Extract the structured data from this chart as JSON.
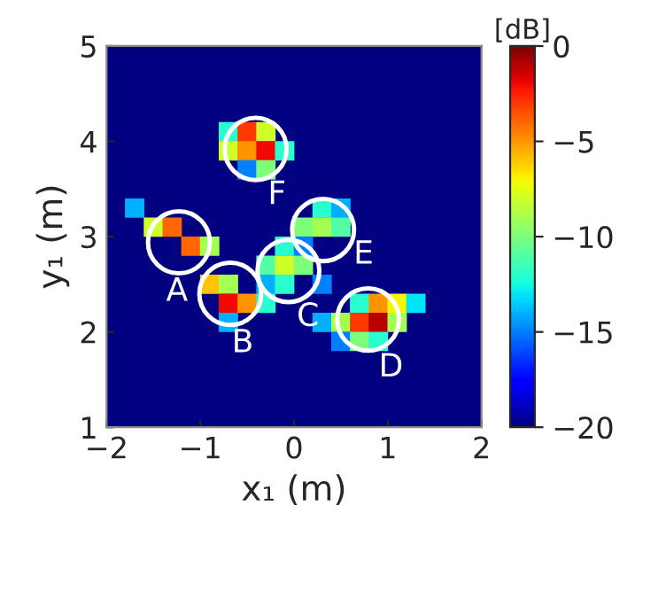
{
  "chart_data": {
    "type": "scatter",
    "xlabel": "x₁ (m)",
    "ylabel": "y₁ (m)",
    "clabel": "[dB]",
    "marker": "square",
    "x": [
      -0.7,
      -0.5,
      -0.3,
      -0.7,
      -0.5,
      -0.3,
      -0.1,
      -0.5,
      -0.3,
      -1.7,
      0.3,
      0.5,
      -1.5,
      -1.3,
      0.1,
      0.3,
      0.5,
      -1.1,
      -0.9,
      -0.1,
      0.1,
      -0.3,
      -0.1,
      0.1,
      -0.9,
      -0.7,
      -0.3,
      -0.1,
      0.3,
      -0.7,
      -0.5,
      -0.3,
      0.7,
      0.9,
      1.1,
      1.3,
      -0.7,
      0.3,
      0.5,
      0.7,
      0.9,
      1.1,
      0.5,
      0.7,
      0.9
    ],
    "values": [
      4.1,
      4.1,
      4.1,
      3.9,
      3.9,
      3.9,
      3.9,
      3.7,
      3.7,
      3.3,
      3.3,
      3.3,
      3.1,
      3.1,
      3.1,
      3.1,
      3.1,
      2.9,
      2.9,
      2.9,
      2.9,
      2.7,
      2.7,
      2.7,
      2.5,
      2.5,
      2.5,
      2.5,
      2.5,
      2.3,
      2.3,
      2.3,
      2.3,
      2.3,
      2.3,
      2.3,
      2.1,
      2.1,
      2.1,
      2.1,
      2.1,
      2.1,
      1.9,
      1.9,
      1.9
    ],
    "cvalues": [
      -12,
      -3,
      -8,
      -8,
      -5,
      -2,
      -12,
      -15,
      -10,
      -14,
      -12,
      -14,
      -8,
      -4,
      -10,
      -9,
      -11,
      -4,
      -9,
      -12,
      -15,
      -11,
      -8,
      -10,
      -6,
      -9,
      -14,
      -12,
      -15,
      -2,
      -5,
      -12,
      -12,
      -5,
      -7,
      -13,
      -14,
      -14,
      -9,
      -3,
      -1,
      -9,
      -15,
      -10,
      -12
    ],
    "xlim": [
      -2,
      2
    ],
    "ylim": [
      1,
      5
    ],
    "xticks": [
      {
        "value": -2,
        "label": "−2"
      },
      {
        "value": -1,
        "label": "−1"
      },
      0,
      1,
      2
    ],
    "yticks": [
      1,
      2,
      3,
      4,
      5
    ],
    "clim": [
      -20,
      0
    ],
    "cticks": [
      {
        "value": -20,
        "label": "−20"
      },
      {
        "value": -15,
        "label": "−15"
      },
      {
        "value": -10,
        "label": "−10"
      },
      {
        "value": -5,
        "label": "−5"
      },
      0
    ],
    "annotations": [
      "A",
      "B",
      "C",
      "D",
      "E",
      "F"
    ]
  }
}
